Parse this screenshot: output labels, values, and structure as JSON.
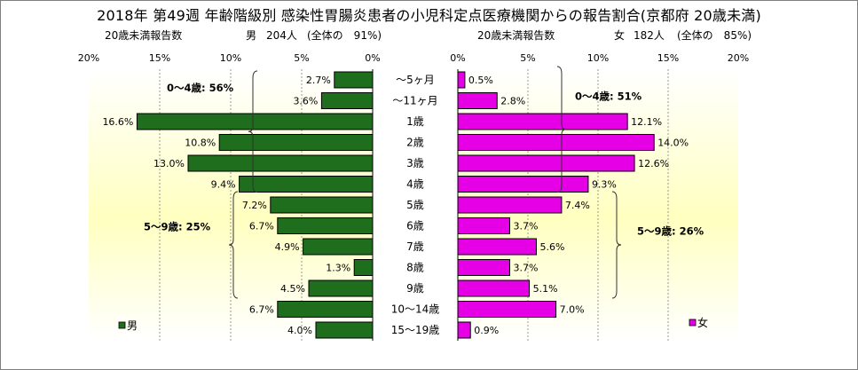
{
  "title": "2018年 第49週 年齢階級別 感染性胃腸炎患者の小児科定点医療機関からの報告割合(京都府 20歳未満)",
  "male_header": {
    "label": "20歳未満報告数",
    "sex": "男",
    "count": "204人",
    "share": "(全体の　91%)"
  },
  "female_header": {
    "label": "20歳未満報告数",
    "sex": "女",
    "count": "182人",
    "share": "(全体の　85%)"
  },
  "chart_data": [
    {
      "type": "bar",
      "orientation": "horizontal",
      "direction": "right-to-left",
      "series": [
        {
          "name": "男",
          "color": "#1e6e1e",
          "values": [
            2.7,
            3.6,
            16.6,
            10.8,
            13.0,
            9.4,
            7.2,
            6.7,
            4.9,
            1.3,
            4.5,
            6.7,
            4.0
          ],
          "labels": [
            "2.7%",
            "3.6%",
            "16.6%",
            "10.8%",
            "13.0%",
            "9.4%",
            "7.2%",
            "6.7%",
            "4.9%",
            "1.3%",
            "4.5%",
            "6.7%",
            "4.0%"
          ]
        }
      ],
      "xlim": [
        0,
        20
      ],
      "x_ticks": [
        "20%",
        "15%",
        "10%",
        "5%",
        "0%"
      ],
      "brackets": [
        {
          "label": "0～4歳: 56%",
          "from": 0,
          "to": 5
        },
        {
          "label": "5～9歳: 25%",
          "from": 6,
          "to": 10
        }
      ],
      "legend": "bottom-left"
    },
    {
      "type": "bar",
      "orientation": "horizontal",
      "direction": "left-to-right",
      "series": [
        {
          "name": "女",
          "color": "#e600e6",
          "values": [
            0.5,
            2.8,
            12.1,
            14.0,
            12.6,
            9.3,
            7.4,
            3.7,
            5.6,
            3.7,
            5.1,
            7.0,
            0.9
          ],
          "labels": [
            "0.5%",
            "2.8%",
            "12.1%",
            "14.0%",
            "12.6%",
            "9.3%",
            "7.4%",
            "3.7%",
            "5.6%",
            "3.7%",
            "5.1%",
            "7.0%",
            "0.9%"
          ]
        }
      ],
      "xlim": [
        0,
        20
      ],
      "x_ticks": [
        "0%",
        "5%",
        "10%",
        "15%",
        "20%"
      ],
      "brackets": [
        {
          "label": "0～4歳: 51%",
          "from": 0,
          "to": 5
        },
        {
          "label": "5～9歳: 26%",
          "from": 6,
          "to": 10
        }
      ],
      "legend": "bottom-right"
    }
  ],
  "categories": [
    "～5ヶ月",
    "～11ヶ月",
    "1歳",
    "2歳",
    "3歳",
    "4歳",
    "5歳",
    "6歳",
    "7歳",
    "8歳",
    "9歳",
    "10～14歳",
    "15～19歳"
  ]
}
